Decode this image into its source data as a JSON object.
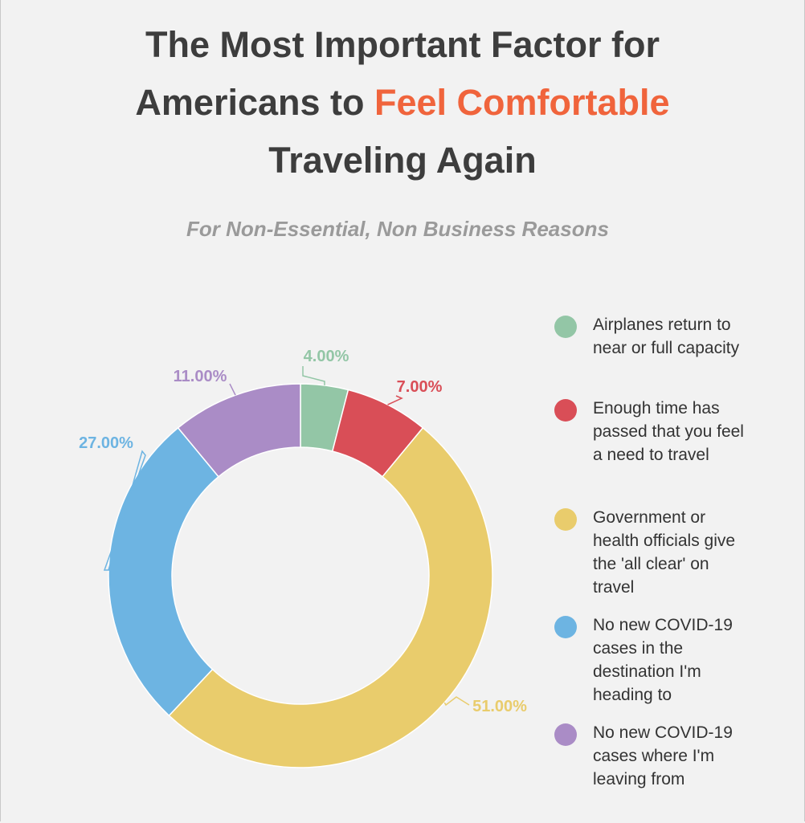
{
  "title": {
    "line1": "The Most Important Factor for",
    "line2_pre": "Americans to ",
    "line2_accent": "Feel Comfortable",
    "line3": "Traveling Again"
  },
  "subtitle": "For Non-Essential, Non Business Reasons",
  "colors": {
    "accent": "#f0643c",
    "title": "#3d3d3d",
    "subtitle": "#9a9a9a",
    "background": "#f2f2f2"
  },
  "chart_data": {
    "type": "pie",
    "donut": true,
    "title": "",
    "legend_position": "right",
    "slices": [
      {
        "label": "Airplanes return to near or full capacity",
        "value": 4.0,
        "display": "4.00%",
        "color": "#93c6a6"
      },
      {
        "label": "Enough time has passed that you feel a need to travel",
        "value": 7.0,
        "display": "7.00%",
        "color": "#d94e57"
      },
      {
        "label": "Government or health officials give the 'all clear' on travel",
        "value": 51.0,
        "display": "51.00%",
        "color": "#e9cc6c"
      },
      {
        "label": "No new COVID-19 cases in the destination I'm heading to",
        "value": 27.0,
        "display": "27.00%",
        "color": "#6db4e2"
      },
      {
        "label": "No new COVID-19 cases where I'm leaving from",
        "value": 11.0,
        "display": "11.00%",
        "color": "#aa8cc6"
      }
    ]
  }
}
